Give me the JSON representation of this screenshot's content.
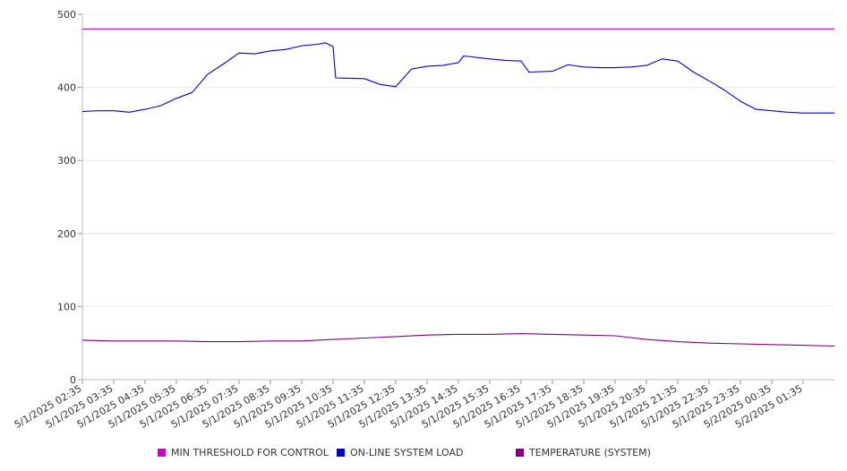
{
  "chart_data": {
    "type": "line",
    "title": "",
    "xlabel": "",
    "ylabel": "",
    "ylim": [
      0,
      500
    ],
    "yticks": [
      0,
      100,
      200,
      300,
      400,
      500
    ],
    "grid": "horizontal",
    "legend_position": "bottom",
    "x_start": "5/1/2025 02:35",
    "x_end": "5/2/2025 02:35",
    "x_ticks": [
      "5/1/2025 02:35",
      "5/1/2025 03:35",
      "5/1/2025 04:35",
      "5/1/2025 05:35",
      "5/1/2025 06:35",
      "5/1/2025 07:35",
      "5/1/2025 08:35",
      "5/1/2025 09:35",
      "5/1/2025 10:35",
      "5/1/2025 11:35",
      "5/1/2025 12:35",
      "5/1/2025 13:35",
      "5/1/2025 14:35",
      "5/1/2025 15:35",
      "5/1/2025 16:35",
      "5/1/2025 17:35",
      "5/1/2025 18:35",
      "5/1/2025 19:35",
      "5/1/2025 20:35",
      "5/1/2025 21:35",
      "5/1/2025 22:35",
      "5/1/2025 23:35",
      "5/2/2025 00:35",
      "5/2/2025 01:35"
    ],
    "series": [
      {
        "name": "MIN THRESHOLD FOR CONTROL",
        "color": "#cc00cc",
        "points": [
          [
            "5/1/2025 02:35",
            480
          ],
          [
            "5/2/2025 02:35",
            480
          ]
        ]
      },
      {
        "name": "ON-LINE SYSTEM LOAD",
        "color": "#0000dd",
        "points": [
          [
            "5/1/2025 02:35",
            367
          ],
          [
            "5/1/2025 03:05",
            368
          ],
          [
            "5/1/2025 03:35",
            368
          ],
          [
            "5/1/2025 04:05",
            366
          ],
          [
            "5/1/2025 04:35",
            370
          ],
          [
            "5/1/2025 05:05",
            375
          ],
          [
            "5/1/2025 05:35",
            385
          ],
          [
            "5/1/2025 06:05",
            393
          ],
          [
            "5/1/2025 06:35",
            418
          ],
          [
            "5/1/2025 07:05",
            432
          ],
          [
            "5/1/2025 07:35",
            447
          ],
          [
            "5/1/2025 08:05",
            446
          ],
          [
            "5/1/2025 08:35",
            450
          ],
          [
            "5/1/2025 09:05",
            452
          ],
          [
            "5/1/2025 09:35",
            457
          ],
          [
            "5/1/2025 10:05",
            459
          ],
          [
            "5/1/2025 10:20",
            461
          ],
          [
            "5/1/2025 10:35",
            456
          ],
          [
            "5/1/2025 10:40",
            413
          ],
          [
            "5/1/2025 11:35",
            412
          ],
          [
            "5/1/2025 12:05",
            404
          ],
          [
            "5/1/2025 12:35",
            401
          ],
          [
            "5/1/2025 13:05",
            425
          ],
          [
            "5/1/2025 13:35",
            429
          ],
          [
            "5/1/2025 14:05",
            430
          ],
          [
            "5/1/2025 14:35",
            434
          ],
          [
            "5/1/2025 14:45",
            443
          ],
          [
            "5/1/2025 15:35",
            439
          ],
          [
            "5/1/2025 16:05",
            437
          ],
          [
            "5/1/2025 16:35",
            436
          ],
          [
            "5/1/2025 16:50",
            421
          ],
          [
            "5/1/2025 17:35",
            422
          ],
          [
            "5/1/2025 18:05",
            431
          ],
          [
            "5/1/2025 18:35",
            428
          ],
          [
            "5/1/2025 19:05",
            427
          ],
          [
            "5/1/2025 19:35",
            427
          ],
          [
            "5/1/2025 20:05",
            428
          ],
          [
            "5/1/2025 20:35",
            430
          ],
          [
            "5/1/2025 21:05",
            439
          ],
          [
            "5/1/2025 21:35",
            436
          ],
          [
            "5/1/2025 22:05",
            421
          ],
          [
            "5/1/2025 22:35",
            409
          ],
          [
            "5/1/2025 23:05",
            396
          ],
          [
            "5/1/2025 23:35",
            381
          ],
          [
            "5/2/2025 00:05",
            370
          ],
          [
            "5/2/2025 00:35",
            368
          ],
          [
            "5/2/2025 01:05",
            366
          ],
          [
            "5/2/2025 01:35",
            365
          ],
          [
            "5/2/2025 02:05",
            365
          ],
          [
            "5/2/2025 02:35",
            365
          ]
        ]
      },
      {
        "name": "TEMPERATURE (SYSTEM)",
        "color": "#800080",
        "points": [
          [
            "5/1/2025 02:35",
            54
          ],
          [
            "5/1/2025 03:35",
            53
          ],
          [
            "5/1/2025 04:35",
            53
          ],
          [
            "5/1/2025 05:35",
            53
          ],
          [
            "5/1/2025 06:35",
            52
          ],
          [
            "5/1/2025 07:35",
            52
          ],
          [
            "5/1/2025 08:35",
            53
          ],
          [
            "5/1/2025 09:35",
            53
          ],
          [
            "5/1/2025 10:35",
            55
          ],
          [
            "5/1/2025 11:35",
            57
          ],
          [
            "5/1/2025 12:35",
            59
          ],
          [
            "5/1/2025 13:35",
            61
          ],
          [
            "5/1/2025 14:35",
            62
          ],
          [
            "5/1/2025 15:35",
            62
          ],
          [
            "5/1/2025 16:35",
            63
          ],
          [
            "5/1/2025 17:35",
            62
          ],
          [
            "5/1/2025 18:35",
            61
          ],
          [
            "5/1/2025 19:35",
            60
          ],
          [
            "5/1/2025 20:35",
            55
          ],
          [
            "5/1/2025 21:35",
            52
          ],
          [
            "5/1/2025 22:35",
            50
          ],
          [
            "5/1/2025 23:35",
            49
          ],
          [
            "5/2/2025 00:35",
            48
          ],
          [
            "5/2/2025 01:35",
            47
          ],
          [
            "5/2/2025 02:35",
            46
          ]
        ]
      }
    ]
  }
}
